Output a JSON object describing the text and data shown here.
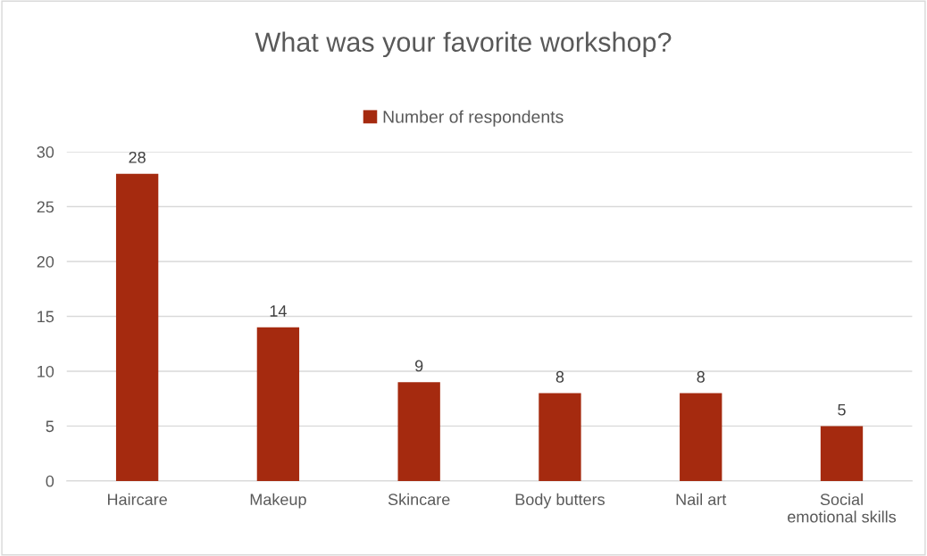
{
  "chart_data": {
    "type": "bar",
    "title": "What was your favorite workshop?",
    "categories": [
      "Haircare",
      "Makeup",
      "Skincare",
      "Body butters",
      "Nail art",
      "Social\nemotional skills"
    ],
    "series": [
      {
        "name": "Number of respondents",
        "color": "#a52a0f",
        "values": [
          28,
          14,
          9,
          8,
          8,
          5
        ]
      }
    ],
    "ylim": [
      0,
      30
    ],
    "yticks": [
      0,
      5,
      10,
      15,
      20,
      25,
      30
    ],
    "grid": "y",
    "legend": "top",
    "data_labels": true
  }
}
